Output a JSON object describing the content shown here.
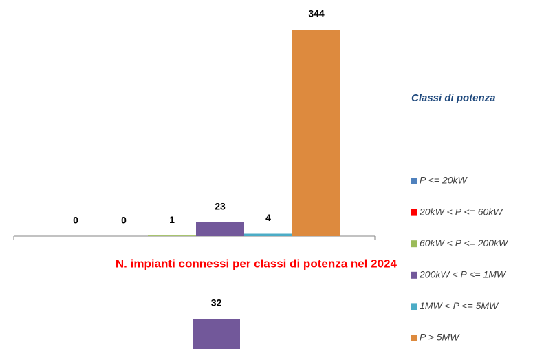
{
  "chart_data": [
    {
      "type": "bar",
      "legend_title": "Classi di potenza",
      "series": [
        {
          "name": "P <= 20kW",
          "color": "#4f81bd",
          "values": [
            0
          ]
        },
        {
          "name": "20kW < P <= 60kW",
          "color": "#ff0000",
          "values": [
            0
          ]
        },
        {
          "name": "60kW < P <= 200kW",
          "color": "#9bbb59",
          "values": [
            1
          ]
        },
        {
          "name": "200kW < P <= 1MW",
          "color": "#72589a",
          "values": [
            23
          ]
        },
        {
          "name": "1MW < P <= 5MW",
          "color": "#4bacc6",
          "values": [
            4
          ]
        },
        {
          "name": "P > 5MW",
          "color": "#dd8a3e",
          "values": [
            344
          ]
        }
      ]
    },
    {
      "type": "bar",
      "title": "N. impianti connessi per classi di potenza nel 2024",
      "values": [
        32
      ],
      "color": "#72589a"
    }
  ]
}
